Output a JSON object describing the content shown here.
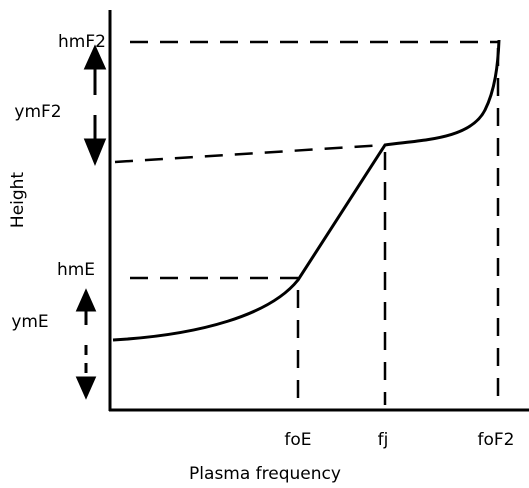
{
  "axes": {
    "y_label": "Height",
    "x_label": "Plasma frequency"
  },
  "x_labels": [
    "foE",
    "fj",
    "foF2"
  ],
  "y_labels": [
    "hmF2",
    "ymF2",
    "hmE",
    "ymE"
  ]
}
